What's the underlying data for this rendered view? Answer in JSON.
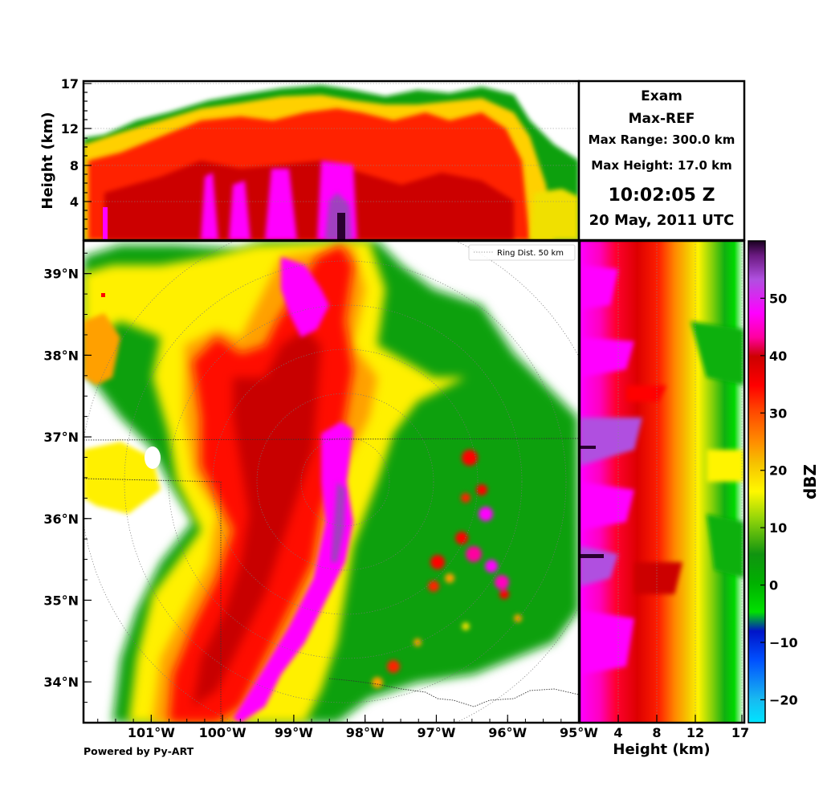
{
  "info": {
    "title": "Exam",
    "product": "Max-REF",
    "max_range": "Max Range: 300.0 km",
    "max_height": "Max Height: 17.0 km",
    "time": "10:02:05 Z",
    "date": "20 May, 2011 UTC"
  },
  "footer": "Powered by Py-ART",
  "legend_ring": "Ring Dist. 50 km",
  "colorbar": {
    "label": "dBZ",
    "min": -24,
    "max": 60,
    "ticks": [
      -20,
      -10,
      0,
      10,
      20,
      30,
      40,
      50
    ],
    "tick_labels": [
      "−20",
      "−10",
      "0",
      "10",
      "20",
      "30",
      "40",
      "50"
    ]
  },
  "chart_data": [
    {
      "type": "heatmap",
      "panel": "plan view (column max reflectivity)",
      "xlim": [
        -101.95,
        -95.0
      ],
      "ylim": [
        33.5,
        39.4
      ],
      "xticks": [
        -101,
        -100,
        -99,
        -98,
        -97,
        -96,
        -95
      ],
      "xtick_labels": [
        "101°W",
        "100°W",
        "99°W",
        "98°W",
        "97°W",
        "96°W",
        "95°W"
      ],
      "yticks": [
        34,
        35,
        36,
        37,
        38,
        39
      ],
      "ytick_labels": [
        "34°N",
        "35°N",
        "36°N",
        "37°N",
        "38°N",
        "39°N"
      ],
      "legend": "Ring Dist. 50 km"
    },
    {
      "type": "heatmap",
      "panel": "longitude-height max projection",
      "xlim": [
        -101.95,
        -95.0
      ],
      "ylim": [
        0,
        17
      ],
      "yticks": [
        4,
        8,
        12,
        17
      ],
      "ytick_labels": [
        "4",
        "8",
        "12",
        "17"
      ],
      "ylabel": "Height (km)",
      "grid": true
    },
    {
      "type": "heatmap",
      "panel": "height-latitude max projection",
      "xlim": [
        0,
        17
      ],
      "ylim": [
        33.5,
        39.4
      ],
      "xticks": [
        4,
        8,
        12,
        17
      ],
      "xtick_labels": [
        "4",
        "8",
        "12",
        "17"
      ],
      "xlabel": "Height (km)",
      "grid": true
    }
  ]
}
